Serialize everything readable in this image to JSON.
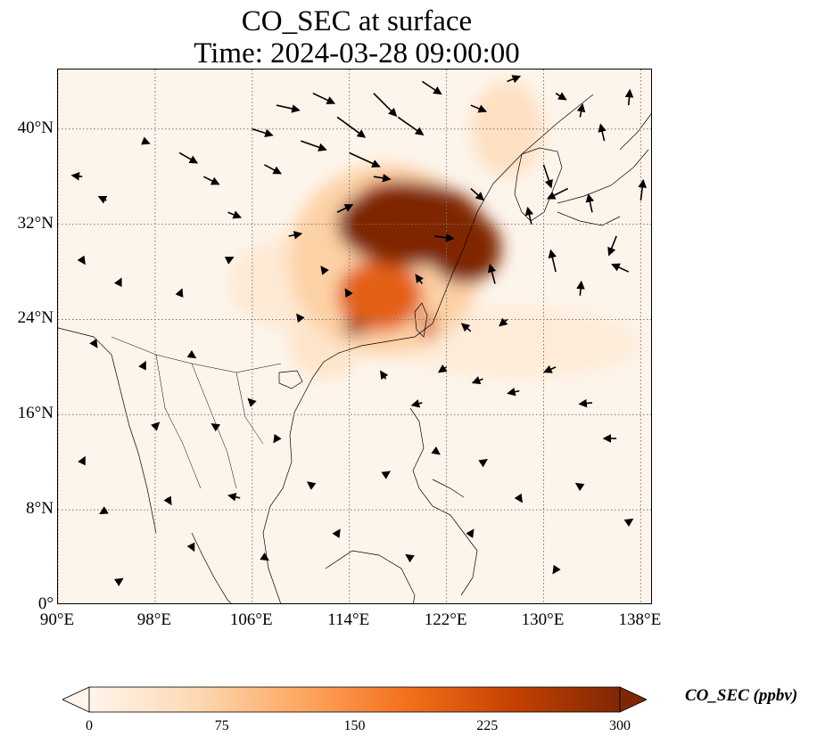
{
  "title": "CO_SEC at surface",
  "subtitle": "Time: 2024-03-28 09:00:00",
  "map": {
    "lon_range": [
      90,
      139
    ],
    "lat_range": [
      0,
      45
    ],
    "lat_ticks": [
      {
        "value": 0,
        "label": "0°"
      },
      {
        "value": 8,
        "label": "8°N"
      },
      {
        "value": 16,
        "label": "16°N"
      },
      {
        "value": 24,
        "label": "24°N"
      },
      {
        "value": 32,
        "label": "32°N"
      },
      {
        "value": 40,
        "label": "40°N"
      }
    ],
    "lon_ticks": [
      {
        "value": 90,
        "label": "90°E"
      },
      {
        "value": 98,
        "label": "98°E"
      },
      {
        "value": 106,
        "label": "106°E"
      },
      {
        "value": 114,
        "label": "114°E"
      },
      {
        "value": 122,
        "label": "122°E"
      },
      {
        "value": 130,
        "label": "130°E"
      },
      {
        "value": 138,
        "label": "138°E"
      }
    ],
    "gridlines": "dotted",
    "background_color": "#fdf5eb",
    "plumes": [
      {
        "lon": 119,
        "lat": 32,
        "rlon": 6,
        "rlat": 3.5,
        "level": 300
      },
      {
        "lon": 123.5,
        "lat": 30,
        "rlon": 3,
        "rlat": 3,
        "level": 300
      },
      {
        "lon": 117,
        "lat": 30.5,
        "rlon": 3,
        "rlat": 1.5,
        "level": 260
      },
      {
        "lon": 116.5,
        "lat": 26,
        "rlon": 3.5,
        "rlat": 3,
        "level": 200
      },
      {
        "lon": 114.5,
        "lat": 23.3,
        "rlon": 1,
        "rlat": 0.6,
        "level": 300
      },
      {
        "lon": 120.5,
        "lat": 23.5,
        "rlon": 0.5,
        "rlat": 1.2,
        "level": 240
      },
      {
        "lon": 118,
        "lat": 34.5,
        "rlon": 3,
        "rlat": 1.2,
        "level": 220
      },
      {
        "lon": 117,
        "lat": 29,
        "rlon": 8,
        "rlat": 8,
        "level": 70
      },
      {
        "lon": 127,
        "lat": 40,
        "rlon": 3,
        "rlat": 4,
        "level": 45
      },
      {
        "lon": 112,
        "lat": 22,
        "rlon": 3,
        "rlat": 3,
        "level": 35
      },
      {
        "lon": 110,
        "lat": 27,
        "rlon": 6,
        "rlat": 4,
        "level": 25
      },
      {
        "lon": 128,
        "lat": 22,
        "rlon": 10,
        "rlat": 3,
        "level": 20
      }
    ],
    "wind_vectors": [
      {
        "lon": 92,
        "lat": 36,
        "u": -0.8,
        "v": 0.1
      },
      {
        "lon": 94,
        "lat": 34,
        "u": -0.6,
        "v": 0.3
      },
      {
        "lon": 97,
        "lat": 39,
        "u": 0.5,
        "v": -0.2
      },
      {
        "lon": 100,
        "lat": 38,
        "u": 1.4,
        "v": -0.8
      },
      {
        "lon": 102,
        "lat": 36,
        "u": 1.2,
        "v": -0.6
      },
      {
        "lon": 104,
        "lat": 33,
        "u": 1.0,
        "v": -0.4
      },
      {
        "lon": 106,
        "lat": 40,
        "u": 1.6,
        "v": -0.5
      },
      {
        "lon": 107,
        "lat": 37,
        "u": 1.3,
        "v": -0.7
      },
      {
        "lon": 108,
        "lat": 42,
        "u": 1.8,
        "v": -0.4
      },
      {
        "lon": 110,
        "lat": 39,
        "u": 2.0,
        "v": -0.7
      },
      {
        "lon": 111,
        "lat": 43,
        "u": 1.7,
        "v": -0.8
      },
      {
        "lon": 113,
        "lat": 41,
        "u": 2.2,
        "v": -1.6
      },
      {
        "lon": 114,
        "lat": 38,
        "u": 2.4,
        "v": -1.1
      },
      {
        "lon": 116,
        "lat": 43,
        "u": 1.8,
        "v": -1.8
      },
      {
        "lon": 118,
        "lat": 41,
        "u": 2.0,
        "v": -1.4
      },
      {
        "lon": 120,
        "lat": 44,
        "u": 1.5,
        "v": -1.0
      },
      {
        "lon": 124,
        "lat": 42,
        "u": 1.2,
        "v": -0.5
      },
      {
        "lon": 127,
        "lat": 44,
        "u": 1.0,
        "v": 0.4
      },
      {
        "lon": 131,
        "lat": 43,
        "u": 0.8,
        "v": -0.5
      },
      {
        "lon": 133,
        "lat": 41,
        "u": 0.2,
        "v": 1.0
      },
      {
        "lon": 135,
        "lat": 39,
        "u": -0.3,
        "v": 1.3
      },
      {
        "lon": 137,
        "lat": 42,
        "u": 0.1,
        "v": 1.2
      },
      {
        "lon": 130,
        "lat": 37,
        "u": 0.6,
        "v": -1.8
      },
      {
        "lon": 132,
        "lat": 35,
        "u": -1.6,
        "v": -0.8
      },
      {
        "lon": 134,
        "lat": 33,
        "u": -0.3,
        "v": 1.4
      },
      {
        "lon": 136,
        "lat": 31,
        "u": -0.6,
        "v": -1.5
      },
      {
        "lon": 138,
        "lat": 34,
        "u": 0.2,
        "v": 1.6
      },
      {
        "lon": 129,
        "lat": 32,
        "u": -0.3,
        "v": 1.3
      },
      {
        "lon": 131,
        "lat": 28,
        "u": -0.4,
        "v": 1.7
      },
      {
        "lon": 133,
        "lat": 26,
        "u": 0.1,
        "v": 1.1
      },
      {
        "lon": 137,
        "lat": 28,
        "u": -1.3,
        "v": 0.6
      },
      {
        "lon": 126,
        "lat": 27,
        "u": -0.4,
        "v": 1.5
      },
      {
        "lon": 127,
        "lat": 24,
        "u": -0.6,
        "v": -0.5
      },
      {
        "lon": 124,
        "lat": 23,
        "u": -0.7,
        "v": 0.6
      },
      {
        "lon": 122,
        "lat": 20,
        "u": -0.6,
        "v": -0.4
      },
      {
        "lon": 125,
        "lat": 19,
        "u": -0.8,
        "v": -0.3
      },
      {
        "lon": 128,
        "lat": 18,
        "u": -0.9,
        "v": -0.2
      },
      {
        "lon": 131,
        "lat": 20,
        "u": -0.9,
        "v": -0.4
      },
      {
        "lon": 134,
        "lat": 17,
        "u": -1.0,
        "v": -0.1
      },
      {
        "lon": 136,
        "lat": 14,
        "u": -1.0,
        "v": 0.0
      },
      {
        "lon": 120,
        "lat": 17,
        "u": -0.8,
        "v": -0.2
      },
      {
        "lon": 117,
        "lat": 19,
        "u": -0.4,
        "v": 0.6
      },
      {
        "lon": 114,
        "lat": 26,
        "u": -0.3,
        "v": 0.5
      },
      {
        "lon": 112,
        "lat": 28,
        "u": -0.3,
        "v": 0.4
      },
      {
        "lon": 110,
        "lat": 24,
        "u": -0.3,
        "v": 0.4
      },
      {
        "lon": 116,
        "lat": 36,
        "u": 1.3,
        "v": -0.2
      },
      {
        "lon": 113,
        "lat": 33,
        "u": 1.2,
        "v": 0.6
      },
      {
        "lon": 109,
        "lat": 31,
        "u": 1.0,
        "v": 0.2
      },
      {
        "lon": 104,
        "lat": 29,
        "u": 0.4,
        "v": 0.2
      },
      {
        "lon": 100,
        "lat": 26,
        "u": 0.2,
        "v": 0.5
      },
      {
        "lon": 95,
        "lat": 27,
        "u": 0.2,
        "v": 0.4
      },
      {
        "lon": 92,
        "lat": 29,
        "u": 0.2,
        "v": -0.3
      },
      {
        "lon": 93,
        "lat": 22,
        "u": 0.2,
        "v": -0.3
      },
      {
        "lon": 97,
        "lat": 20,
        "u": 0.2,
        "v": 0.4
      },
      {
        "lon": 101,
        "lat": 21,
        "u": 0.3,
        "v": -0.2
      },
      {
        "lon": 106,
        "lat": 17,
        "u": -0.3,
        "v": 0.3
      },
      {
        "lon": 108,
        "lat": 14,
        "u": -0.2,
        "v": -0.3
      },
      {
        "lon": 103,
        "lat": 15,
        "u": -0.3,
        "v": 0.2
      },
      {
        "lon": 98,
        "lat": 15,
        "u": 0.3,
        "v": 0.3
      },
      {
        "lon": 92,
        "lat": 12,
        "u": 0.2,
        "v": 0.4
      },
      {
        "lon": 94,
        "lat": 8,
        "u": -0.5,
        "v": -0.3
      },
      {
        "lon": 99,
        "lat": 9,
        "u": 0.3,
        "v": -0.5
      },
      {
        "lon": 105,
        "lat": 9,
        "u": -0.9,
        "v": 0.2
      },
      {
        "lon": 111,
        "lat": 10,
        "u": -0.4,
        "v": 0.3
      },
      {
        "lon": 117,
        "lat": 11,
        "u": 0.3,
        "v": 0.2
      },
      {
        "lon": 121,
        "lat": 13,
        "u": 0.4,
        "v": -0.3
      },
      {
        "lon": 125,
        "lat": 12,
        "u": 0.3,
        "v": 0.2
      },
      {
        "lon": 128,
        "lat": 9,
        "u": 0.2,
        "v": -0.3
      },
      {
        "lon": 133,
        "lat": 10,
        "u": -0.3,
        "v": 0.2
      },
      {
        "lon": 137,
        "lat": 7,
        "u": 0.3,
        "v": 0.2
      },
      {
        "lon": 101,
        "lat": 5,
        "u": 0.2,
        "v": -0.4
      },
      {
        "lon": 107,
        "lat": 4,
        "u": 0.3,
        "v": -0.2
      },
      {
        "lon": 113,
        "lat": 6,
        "u": 0.2,
        "v": 0.3
      },
      {
        "lon": 119,
        "lat": 4,
        "u": -0.3,
        "v": 0.2
      },
      {
        "lon": 124,
        "lat": 6,
        "u": 0.2,
        "v": 0.3
      },
      {
        "lon": 131,
        "lat": 3,
        "u": -0.2,
        "v": -0.3
      },
      {
        "lon": 95,
        "lat": 2,
        "u": 0.3,
        "v": 0.2
      },
      {
        "lon": 121,
        "lat": 31,
        "u": 1.5,
        "v": -0.2
      },
      {
        "lon": 124,
        "lat": 35,
        "u": 1.0,
        "v": -0.9
      },
      {
        "lon": 120,
        "lat": 27,
        "u": -0.5,
        "v": 0.7
      }
    ]
  },
  "colorbar": {
    "label": "CO_SEC (ppbv)",
    "min": 0,
    "max": 300,
    "ticks": [
      "0",
      "75",
      "150",
      "225",
      "300"
    ],
    "colors": [
      "#fff5eb",
      "#fdd9b4",
      "#fda762",
      "#f3701b",
      "#c54102",
      "#7f2704"
    ],
    "extend": "both"
  }
}
